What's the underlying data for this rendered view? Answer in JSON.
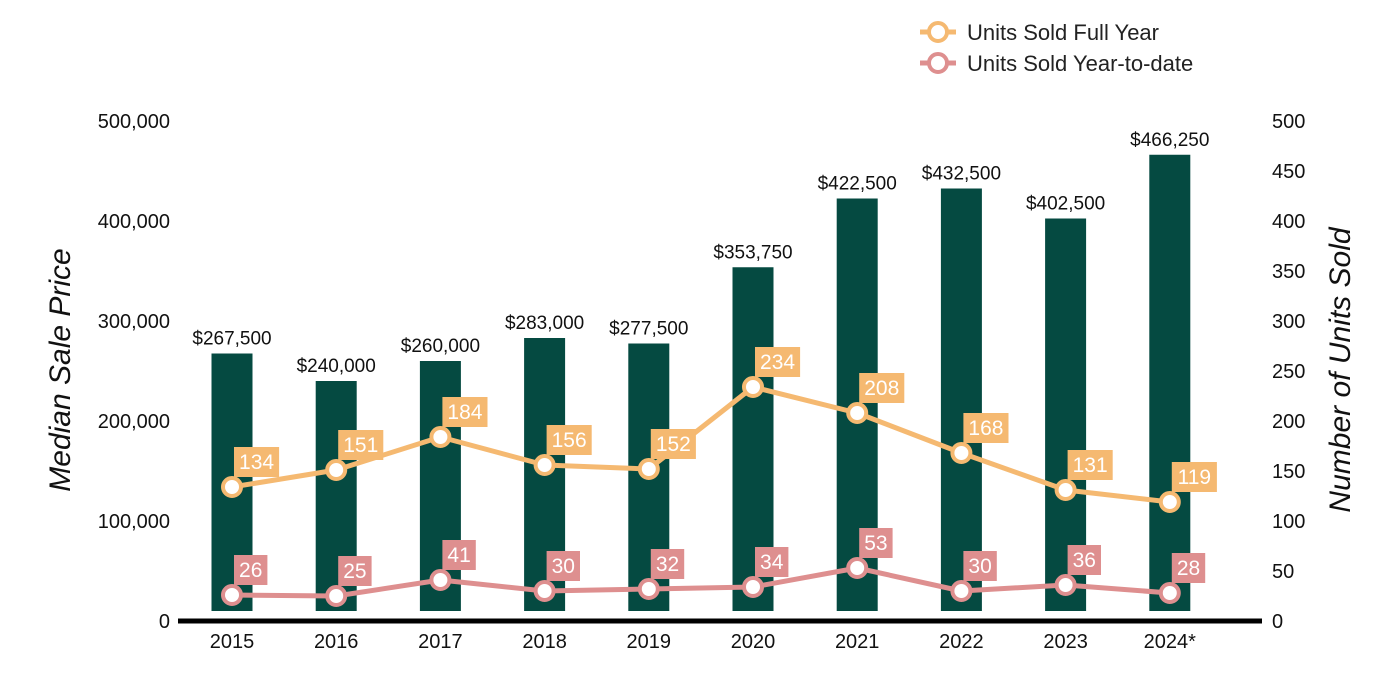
{
  "chart_data": {
    "type": "bar",
    "categories": [
      "2015",
      "2016",
      "2017",
      "2018",
      "2019",
      "2020",
      "2021",
      "2022",
      "2023",
      "2024*"
    ],
    "series": [
      {
        "name": "Median Sale Price",
        "type": "bar",
        "axis": "left",
        "values": [
          267500,
          240000,
          260000,
          283000,
          277500,
          353750,
          422500,
          432500,
          402500,
          466250
        ],
        "labels": [
          "$267,500",
          "$240,000",
          "$260,000",
          "$283,000",
          "$277,500",
          "$353,750",
          "$422,500",
          "$432,500",
          "$402,500",
          "$466,250"
        ],
        "color": "#054a41"
      },
      {
        "name": "Units Sold Full Year",
        "type": "line",
        "axis": "right",
        "values": [
          134,
          151,
          184,
          156,
          152,
          234,
          208,
          168,
          131,
          119
        ],
        "color": "#f5b971"
      },
      {
        "name": "Units Sold Year-to-date",
        "type": "line",
        "axis": "right",
        "values": [
          26,
          25,
          41,
          30,
          32,
          34,
          53,
          30,
          36,
          28
        ],
        "color": "#de8f8f"
      }
    ],
    "ylabel": "Median Sale Price",
    "y2label": "Number of Units Sold",
    "ylim": [
      0,
      500000
    ],
    "y2lim": [
      0,
      500
    ],
    "yticks": [
      "0",
      "100,000",
      "200,000",
      "300,000",
      "400,000",
      "500,000"
    ],
    "y2ticks": [
      "0",
      "50",
      "100",
      "150",
      "200",
      "250",
      "300",
      "350",
      "400",
      "450",
      "500"
    ],
    "legend": {
      "position": "top-right",
      "entries": [
        "Units Sold Full Year",
        "Units Sold Year-to-date"
      ]
    },
    "grid": false
  }
}
